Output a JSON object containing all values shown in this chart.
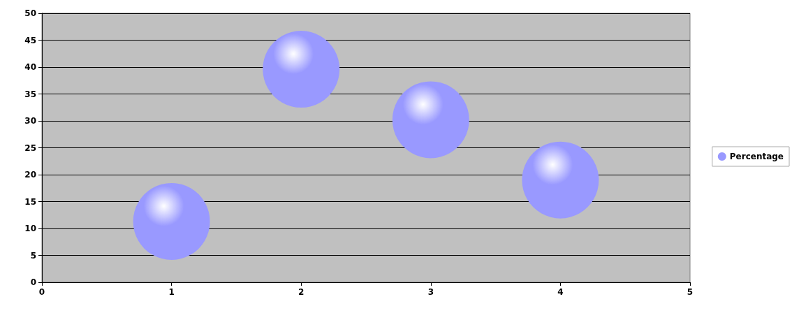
{
  "chart_data": {
    "type": "bubble",
    "x": [
      1,
      2,
      3,
      4
    ],
    "series": [
      {
        "name": "Percentage",
        "color": "#9999ff",
        "values": [
          11.3,
          39.6,
          30.2,
          19
        ],
        "sizes": [
          1,
          1,
          1,
          1
        ]
      }
    ],
    "xlim": [
      0,
      5
    ],
    "xticks": [
      0,
      1,
      2,
      3,
      4,
      5
    ],
    "ylim": [
      0,
      50
    ],
    "yticks": [
      0,
      5,
      10,
      15,
      20,
      25,
      30,
      35,
      40,
      45,
      50
    ],
    "grid": "y",
    "legend": "right",
    "marker": "circle"
  }
}
